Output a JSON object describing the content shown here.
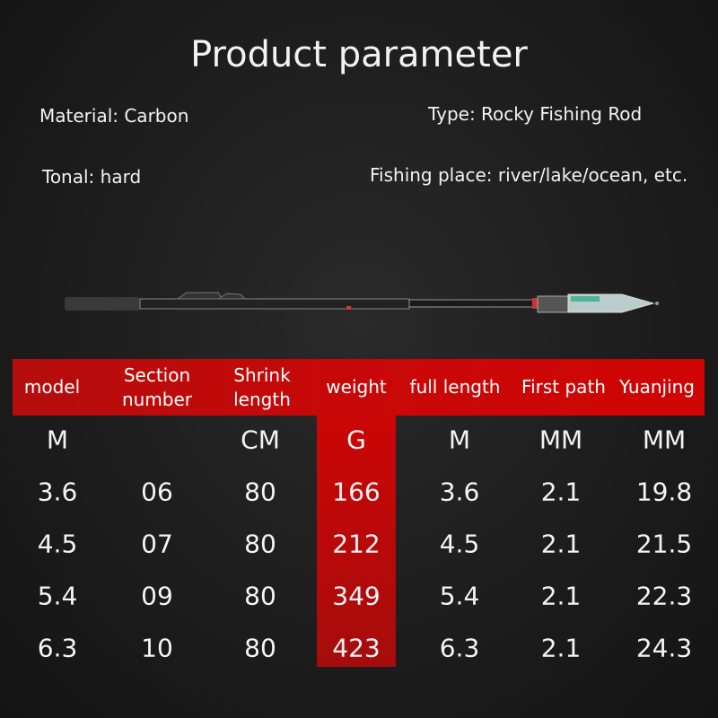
{
  "title": "Product parameter",
  "specs": {
    "material": "Material: Carbon",
    "type": "Type: Rocky Fishing Rod",
    "tonal": "Tonal: hard",
    "place": "Fishing place: river/lake/ocean, etc."
  },
  "colors": {
    "header_red": "#c80808",
    "background": "#1e1e1e"
  },
  "table": {
    "headers": [
      "model",
      "Section number",
      "Shrink length",
      "weight",
      "full length",
      "First path",
      "Yuanjing"
    ],
    "units": [
      "M",
      "",
      "CM",
      "G",
      "M",
      "MM",
      "MM"
    ],
    "rows": [
      [
        "3.6",
        "06",
        "80",
        "166",
        "3.6",
        "2.1",
        "19.8"
      ],
      [
        "4.5",
        "07",
        "80",
        "212",
        "4.5",
        "2.1",
        "21.5"
      ],
      [
        "5.4",
        "09",
        "80",
        "349",
        "5.4",
        "2.1",
        "22.3"
      ],
      [
        "6.3",
        "10",
        "80",
        "423",
        "6.3",
        "2.1",
        "24.3"
      ]
    ]
  }
}
